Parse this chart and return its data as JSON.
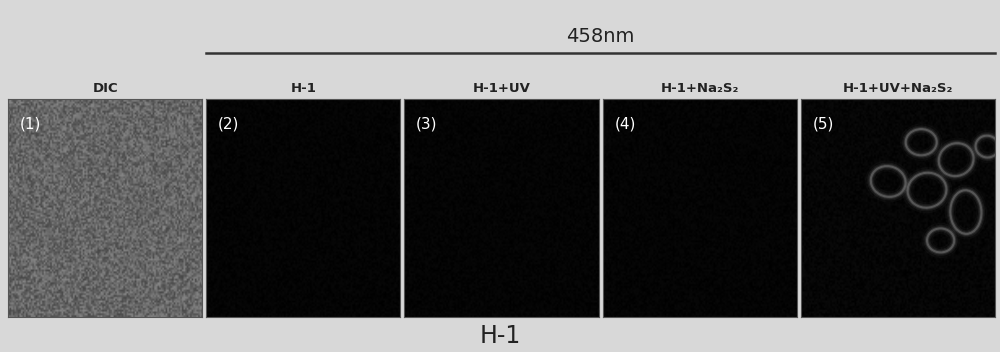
{
  "title_458nm": "458nm",
  "bottom_label": "H-1",
  "col_labels": [
    "DIC",
    "H-1",
    "H-1+UV",
    "H-1+Na₂S₂",
    "H-1+UV+Na₂S₂"
  ],
  "panel_numbers": [
    "(1)",
    "(2)",
    "(3)",
    "(4)",
    "(5)"
  ],
  "n_panels": 5,
  "bg_color": "#d8d8d8",
  "panel1_gray_low": 0.28,
  "panel1_gray_high": 0.52,
  "panel_dark_low": 0.0,
  "panel_dark_high": 0.03,
  "line_color": "#333333",
  "text_color": "#222222",
  "figsize": [
    10.0,
    3.52
  ],
  "dpi": 100,
  "cells": [
    [
      0.62,
      0.8,
      0.16,
      0.12,
      0
    ],
    [
      0.8,
      0.72,
      0.18,
      0.15,
      10
    ],
    [
      0.96,
      0.78,
      0.12,
      0.1,
      -5
    ],
    [
      0.45,
      0.62,
      0.18,
      0.14,
      -8
    ],
    [
      0.65,
      0.58,
      0.2,
      0.16,
      5
    ],
    [
      0.85,
      0.48,
      0.16,
      0.2,
      3
    ],
    [
      0.72,
      0.35,
      0.14,
      0.11,
      0
    ]
  ],
  "cell_color": "#888888",
  "cell_alpha_main": 0.55
}
